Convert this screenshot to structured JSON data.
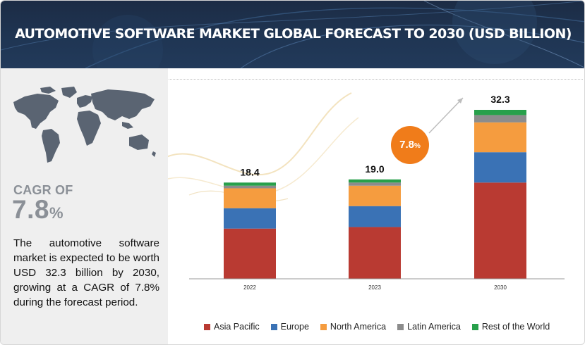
{
  "title": "AUTOMOTIVE SOFTWARE MARKET GLOBAL FORECAST TO 2030 (USD BILLION)",
  "cagr_label": "CAGR OF",
  "cagr_value": "7.8",
  "cagr_unit": "%",
  "description": "The automotive software market is expected to be worth USD 32.3 billion by 2030, growing at a CAGR of 7.8% during the forecast period.",
  "bubble": {
    "value": "7.8",
    "unit": "%"
  },
  "colors": {
    "asia_pacific": "#b93a32",
    "europe": "#3a72b5",
    "north_america": "#f59c3f",
    "latin_america": "#8c8c8c",
    "rest_of_world": "#28a04b",
    "bubble": "#f07c1a"
  },
  "chart_data": {
    "type": "bar",
    "stacked": true,
    "categories": [
      "2022",
      "2023",
      "2030"
    ],
    "totals": [
      18.4,
      19.0,
      32.3
    ],
    "total_labels": [
      "18.4",
      "19.0",
      "32.3"
    ],
    "series": [
      {
        "name": "Asia Pacific",
        "key": "asia_pacific",
        "values": [
          9.6,
          9.9,
          18.4
        ]
      },
      {
        "name": "Europe",
        "key": "europe",
        "values": [
          3.9,
          4.0,
          5.8
        ]
      },
      {
        "name": "North America",
        "key": "north_america",
        "values": [
          3.8,
          3.9,
          5.7
        ]
      },
      {
        "name": "Latin America",
        "key": "latin_america",
        "values": [
          0.5,
          0.6,
          1.4
        ]
      },
      {
        "name": "Rest of the World",
        "key": "rest_of_world",
        "values": [
          0.6,
          0.6,
          1.0
        ]
      }
    ],
    "title": "",
    "xlabel": "",
    "ylabel": "",
    "ylim": [
      0,
      32.3
    ],
    "grid": false,
    "legend": "bottom"
  }
}
